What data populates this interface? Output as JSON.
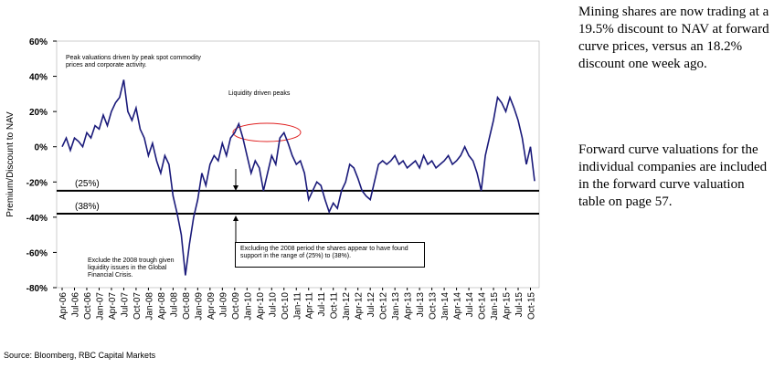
{
  "chart_data": {
    "type": "line",
    "y_label": "Premium/Discount to NAV",
    "categories": [
      "Apr-06",
      null,
      null,
      "Jul-06",
      null,
      null,
      "Oct-06",
      null,
      null,
      "Jan-07",
      null,
      null,
      "Apr-07",
      null,
      null,
      "Jul-07",
      null,
      null,
      "Oct-07",
      null,
      null,
      "Jan-08",
      null,
      null,
      "Apr-08",
      null,
      null,
      "Jul-08",
      null,
      null,
      "Oct-08",
      null,
      null,
      "Jan-09",
      null,
      null,
      "Apr-09",
      null,
      null,
      "Jul-09",
      null,
      null,
      "Oct-09",
      null,
      null,
      "Jan-10",
      null,
      null,
      "Apr-10",
      null,
      null,
      "Jul-10",
      null,
      null,
      "Oct-10",
      null,
      null,
      "Jan-11",
      null,
      null,
      "Apr-11",
      null,
      null,
      "Jul-11",
      null,
      null,
      "Oct-11",
      null,
      null,
      "Jan-12",
      null,
      null,
      "Apr-12",
      null,
      null,
      "Jul-12",
      null,
      null,
      "Oct-12",
      null,
      null,
      "Jan-13",
      null,
      null,
      "Apr-13",
      null,
      null,
      "Jul-13",
      null,
      null,
      "Oct-13",
      null,
      null,
      "Jan-14",
      null,
      null,
      "Apr-14",
      null,
      null,
      "Jul-14",
      null,
      null,
      "Oct-14",
      null,
      null,
      "Jan-15",
      null,
      null,
      "Apr-15",
      null,
      null,
      "Jul-15",
      null,
      null,
      "Oct-15",
      null
    ],
    "series": [
      {
        "name": "Premium/Discount to NAV",
        "color": "#1a1a7a",
        "values": [
          0,
          5,
          -2,
          5,
          3,
          0,
          8,
          5,
          12,
          10,
          18,
          12,
          20,
          25,
          28,
          38,
          20,
          15,
          22,
          10,
          5,
          -5,
          2,
          -8,
          -15,
          -5,
          -10,
          -28,
          -38,
          -50,
          -73,
          -55,
          -40,
          -30,
          -15,
          -22,
          -10,
          -5,
          -8,
          2,
          -5,
          5,
          8,
          13,
          5,
          -5,
          -15,
          -8,
          -12,
          -25,
          -15,
          -5,
          -10,
          5,
          8,
          2,
          -5,
          -10,
          -8,
          -15,
          -30,
          -25,
          -20,
          -22,
          -30,
          -37,
          -32,
          -35,
          -25,
          -20,
          -10,
          -12,
          -18,
          -25,
          -28,
          -30,
          -20,
          -10,
          -8,
          -10,
          -8,
          -5,
          -10,
          -8,
          -12,
          -10,
          -8,
          -12,
          -5,
          -10,
          -8,
          -12,
          -10,
          -8,
          -5,
          -10,
          -8,
          -5,
          0,
          -5,
          -8,
          -15,
          -25,
          -5,
          5,
          15,
          28,
          25,
          20,
          28,
          22,
          15,
          5,
          -10,
          0,
          -19.5
        ]
      }
    ],
    "ylim": [
      -80,
      60
    ],
    "yticks": [
      {
        "value": -80,
        "label": "-80%"
      },
      {
        "value": -60,
        "label": "-60%"
      },
      {
        "value": -40,
        "label": "-40%"
      },
      {
        "value": -20,
        "label": "-20%"
      },
      {
        "value": 0,
        "label": "0%"
      },
      {
        "value": 20,
        "label": "20%"
      },
      {
        "value": 40,
        "label": "40%"
      },
      {
        "value": 60,
        "label": "60%"
      }
    ],
    "reference_lines": [
      {
        "value": -25,
        "label": "(25%)"
      },
      {
        "value": -38,
        "label": "(38%)"
      }
    ],
    "annotations": [
      "Peak valuations driven by peak spot commodity prices and corporate activity.",
      "Liquidity driven peaks",
      "Excluding the 2008 period the shares appear to have found support in the range of (25%) to (38%).",
      "Exclude the 2008 trough given liquidity issues in the Global Financial Crisis."
    ]
  },
  "side_text": [
    "Mining shares are now trading at a 19.5% discount to NAV at forward curve prices, versus an 18.2% discount one week ago.",
    "Forward curve valuations for the individual companies are included in the forward curve valuation table on page 57."
  ],
  "source": "Source: Bloomberg, RBC Capital Markets"
}
